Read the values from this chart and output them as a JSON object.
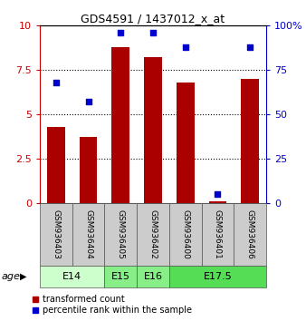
{
  "title": "GDS4591 / 1437012_x_at",
  "samples": [
    "GSM936403",
    "GSM936404",
    "GSM936405",
    "GSM936402",
    "GSM936400",
    "GSM936401",
    "GSM936406"
  ],
  "bar_values": [
    4.3,
    3.7,
    8.8,
    8.2,
    6.8,
    0.1,
    7.0
  ],
  "scatter_values": [
    68,
    57,
    96,
    96,
    88,
    5,
    88
  ],
  "bar_color": "#aa0000",
  "scatter_color": "#0000cc",
  "ylim_left": [
    0,
    10
  ],
  "ylim_right": [
    0,
    100
  ],
  "yticks_left": [
    0,
    2.5,
    5,
    7.5,
    10
  ],
  "ytick_labels_left": [
    "0",
    "2.5",
    "5",
    "7.5",
    "10"
  ],
  "yticks_right": [
    0,
    25,
    50,
    75,
    100
  ],
  "ytick_labels_right": [
    "0",
    "25",
    "50",
    "75",
    "100%"
  ],
  "gridlines_at": [
    2.5,
    5,
    7.5
  ],
  "age_groups": [
    {
      "label": "E14",
      "start": 0,
      "end": 2,
      "color": "#ccffcc"
    },
    {
      "label": "E15",
      "start": 2,
      "end": 3,
      "color": "#88ee88"
    },
    {
      "label": "E16",
      "start": 3,
      "end": 4,
      "color": "#88ee88"
    },
    {
      "label": "E17.5",
      "start": 4,
      "end": 7,
      "color": "#55dd55"
    }
  ],
  "age_label": "age",
  "legend_bar_label": "transformed count",
  "legend_scatter_label": "percentile rank within the sample",
  "left_yaxis_color": "#cc0000",
  "right_yaxis_color": "#0000cc",
  "bar_width": 0.55,
  "figsize": [
    3.38,
    3.54
  ],
  "dpi": 100
}
